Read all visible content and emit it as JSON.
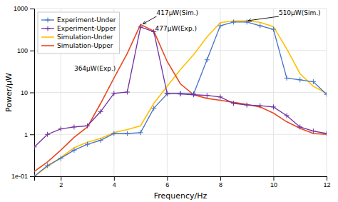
{
  "chart_data": {
    "type": "line",
    "xlabel": "Frequency/Hz",
    "ylabel": "Power/μW",
    "log": "y",
    "grid": true,
    "legend": "upper left",
    "xlim": [
      1,
      12
    ],
    "ylim": [
      0.1,
      1000
    ],
    "xticks": [
      2,
      4,
      6,
      8,
      10,
      12
    ],
    "yticks": [
      {
        "value": 0.1,
        "label": "1e-01"
      },
      1,
      10,
      100,
      1000
    ],
    "series": [
      {
        "name": "Experiment-Under",
        "color": "#4472C4",
        "marker": "plus",
        "x": [
          1.0,
          1.5,
          2.0,
          2.5,
          3.0,
          3.5,
          4.0,
          4.5,
          5.0,
          5.5,
          6.0,
          6.5,
          7.0,
          7.5,
          8.0,
          8.5,
          9.0,
          9.5,
          10.0,
          10.5,
          11.0,
          11.5,
          12.0
        ],
        "values": [
          0.1,
          0.18,
          0.27,
          0.42,
          0.58,
          0.72,
          1.05,
          1.05,
          1.1,
          4.2,
          9.2,
          9.5,
          9.3,
          60.0,
          390.0,
          477.0,
          477.0,
          390.0,
          320.0,
          22.0,
          20.0,
          18.0,
          9.0
        ]
      },
      {
        "name": "Experiment-Upper",
        "color": "#7030A0",
        "marker": "plus",
        "x": [
          1.0,
          1.5,
          2.0,
          2.5,
          3.0,
          3.5,
          4.0,
          4.5,
          5.0,
          5.5,
          6.0,
          6.5,
          7.0,
          7.5,
          8.0,
          8.5,
          9.0,
          9.5,
          10.0,
          10.5,
          11.0,
          11.5,
          12.0
        ],
        "values": [
          0.5,
          1.0,
          1.35,
          1.5,
          1.6,
          3.5,
          9.5,
          10.2,
          364.0,
          280.0,
          9.5,
          9.2,
          8.8,
          8.5,
          7.8,
          5.5,
          5.0,
          4.8,
          4.5,
          2.8,
          1.5,
          1.2,
          1.05
        ]
      },
      {
        "name": "Simulation-Under",
        "color": "#FFC000",
        "x": [
          1.0,
          1.5,
          2.0,
          2.5,
          3.0,
          3.5,
          4.0,
          4.5,
          5.0,
          5.5,
          6.0,
          6.5,
          7.0,
          7.5,
          8.0,
          8.5,
          9.0,
          9.5,
          10.0,
          10.5,
          11.0,
          11.5,
          12.0
        ],
        "values": [
          0.1,
          0.17,
          0.28,
          0.48,
          0.65,
          0.8,
          1.1,
          1.3,
          1.6,
          5.5,
          14.0,
          35.0,
          80.0,
          210.0,
          460.0,
          510.0,
          510.0,
          470.0,
          370.0,
          110.0,
          28.0,
          14.0,
          9.5
        ]
      },
      {
        "name": "Simulation-Upper",
        "color": "#E8491E",
        "x": [
          1.0,
          1.5,
          2.0,
          2.5,
          3.0,
          3.5,
          4.0,
          4.5,
          5.0,
          5.5,
          6.0,
          6.5,
          7.0,
          7.5,
          8.0,
          8.5,
          9.0,
          9.5,
          10.0,
          10.5,
          11.0,
          11.5,
          12.0
        ],
        "values": [
          0.13,
          0.22,
          0.42,
          0.85,
          1.5,
          5.5,
          22.0,
          85.0,
          417.0,
          290.0,
          55.0,
          16.0,
          8.8,
          7.2,
          6.5,
          5.8,
          5.2,
          4.5,
          3.2,
          2.0,
          1.4,
          1.05,
          1.0
        ]
      }
    ],
    "annotations": [
      {
        "text": "417μW(Sim.)",
        "x": 5.6,
        "y": 650,
        "arrow_x": 5.05,
        "arrow_y": 417
      },
      {
        "text": "510μW(Sim.)",
        "x": 10.2,
        "y": 650,
        "arrow_x": 9.0,
        "arrow_y": 510
      },
      {
        "text": "477μW(Exp.)",
        "x": 5.55,
        "y": 330
      },
      {
        "text": "364μW(Exp.)",
        "x": 2.5,
        "y": 38
      }
    ]
  }
}
